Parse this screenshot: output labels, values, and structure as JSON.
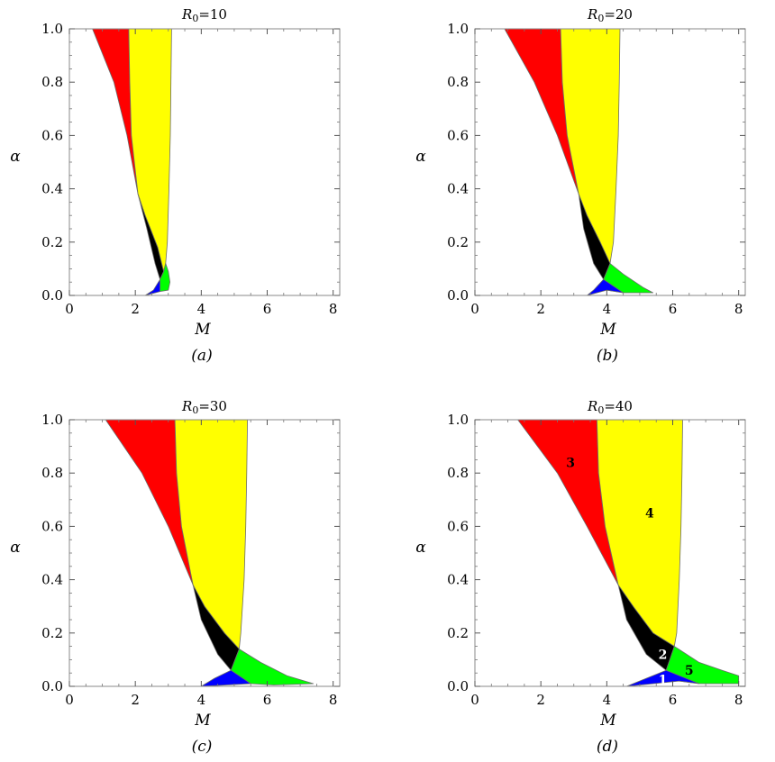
{
  "chart_data": [
    {
      "type": "area",
      "title": "R₀=10",
      "caption": "(a)",
      "xlabel": "M",
      "ylabel": "α",
      "xlim": [
        0,
        8.2
      ],
      "ylim": [
        0,
        1.0
      ],
      "x_ticks": [
        "0",
        "2",
        "4",
        "6",
        "8"
      ],
      "y_ticks": [
        "0.0",
        "0.2",
        "0.4",
        "0.6",
        "0.8",
        "1.0"
      ],
      "grid": false,
      "triple_point": [
        2.08,
        0.38
      ],
      "regions": [
        {
          "id": "3",
          "color": "#ff0000",
          "points": [
            [
              0.7,
              1.0
            ],
            [
              1.8,
              1.0
            ],
            [
              1.83,
              0.8
            ],
            [
              1.88,
              0.6
            ],
            [
              2.08,
              0.38
            ],
            [
              1.75,
              0.6
            ],
            [
              1.35,
              0.8
            ],
            [
              0.7,
              1.0
            ]
          ]
        },
        {
          "id": "4",
          "color": "#ffff00",
          "points": [
            [
              1.8,
              1.0
            ],
            [
              3.1,
              1.0
            ],
            [
              3.08,
              0.8
            ],
            [
              3.06,
              0.6
            ],
            [
              3.02,
              0.4
            ],
            [
              2.97,
              0.2
            ],
            [
              2.92,
              0.12
            ],
            [
              2.86,
              0.09
            ],
            [
              2.68,
              0.18
            ],
            [
              2.3,
              0.3
            ],
            [
              2.08,
              0.38
            ],
            [
              1.88,
              0.6
            ],
            [
              1.83,
              0.8
            ],
            [
              1.8,
              1.0
            ]
          ]
        },
        {
          "id": "2",
          "color": "#000000",
          "points": [
            [
              2.08,
              0.38
            ],
            [
              2.3,
              0.3
            ],
            [
              2.68,
              0.18
            ],
            [
              2.86,
              0.09
            ],
            [
              2.75,
              0.06
            ],
            [
              2.6,
              0.12
            ],
            [
              2.35,
              0.25
            ],
            [
              2.08,
              0.38
            ]
          ]
        },
        {
          "id": "5",
          "color": "#00ff00",
          "points": [
            [
              2.86,
              0.09
            ],
            [
              2.92,
              0.12
            ],
            [
              3.0,
              0.09
            ],
            [
              3.05,
              0.05
            ],
            [
              3.0,
              0.02
            ],
            [
              2.75,
              0.015
            ],
            [
              2.75,
              0.06
            ],
            [
              2.86,
              0.09
            ]
          ]
        },
        {
          "id": "1",
          "color": "#0000ff",
          "points": [
            [
              2.3,
              0.0
            ],
            [
              2.75,
              0.015
            ],
            [
              2.75,
              0.06
            ],
            [
              2.55,
              0.02
            ],
            [
              2.3,
              0.0
            ]
          ]
        }
      ],
      "labels": []
    },
    {
      "type": "area",
      "title": "R₀=20",
      "caption": "(b)",
      "xlabel": "M",
      "ylabel": "α",
      "xlim": [
        0,
        8.2
      ],
      "ylim": [
        0,
        1.0
      ],
      "x_ticks": [
        "0",
        "2",
        "4",
        "6",
        "8"
      ],
      "y_ticks": [
        "0.0",
        "0.2",
        "0.4",
        "0.6",
        "0.8",
        "1.0"
      ],
      "grid": false,
      "triple_point": [
        3.15,
        0.38
      ],
      "regions": [
        {
          "id": "3",
          "color": "#ff0000",
          "points": [
            [
              0.9,
              1.0
            ],
            [
              2.6,
              1.0
            ],
            [
              2.65,
              0.8
            ],
            [
              2.8,
              0.6
            ],
            [
              3.15,
              0.38
            ],
            [
              2.5,
              0.6
            ],
            [
              1.8,
              0.8
            ],
            [
              0.9,
              1.0
            ]
          ]
        },
        {
          "id": "4",
          "color": "#ffff00",
          "points": [
            [
              2.6,
              1.0
            ],
            [
              4.4,
              1.0
            ],
            [
              4.38,
              0.8
            ],
            [
              4.35,
              0.6
            ],
            [
              4.28,
              0.4
            ],
            [
              4.2,
              0.2
            ],
            [
              4.1,
              0.12
            ],
            [
              3.8,
              0.2
            ],
            [
              3.4,
              0.3
            ],
            [
              3.15,
              0.38
            ],
            [
              2.8,
              0.6
            ],
            [
              2.65,
              0.8
            ],
            [
              2.6,
              1.0
            ]
          ]
        },
        {
          "id": "2",
          "color": "#000000",
          "points": [
            [
              3.15,
              0.38
            ],
            [
              3.4,
              0.3
            ],
            [
              3.8,
              0.2
            ],
            [
              4.1,
              0.12
            ],
            [
              3.9,
              0.06
            ],
            [
              3.6,
              0.12
            ],
            [
              3.3,
              0.25
            ],
            [
              3.15,
              0.38
            ]
          ]
        },
        {
          "id": "5",
          "color": "#00ff00",
          "points": [
            [
              4.1,
              0.12
            ],
            [
              4.5,
              0.08
            ],
            [
              5.1,
              0.03
            ],
            [
              5.4,
              0.01
            ],
            [
              4.5,
              0.01
            ],
            [
              4.0,
              0.02
            ],
            [
              3.9,
              0.06
            ],
            [
              4.1,
              0.12
            ]
          ]
        },
        {
          "id": "1",
          "color": "#0000ff",
          "points": [
            [
              3.4,
              0.0
            ],
            [
              4.0,
              0.02
            ],
            [
              4.5,
              0.01
            ],
            [
              3.9,
              0.06
            ],
            [
              3.6,
              0.02
            ],
            [
              3.4,
              0.0
            ]
          ]
        }
      ],
      "labels": []
    },
    {
      "type": "area",
      "title": "R₀=30",
      "caption": "(c)",
      "xlabel": "M",
      "ylabel": "α",
      "xlim": [
        0,
        8.2
      ],
      "ylim": [
        0,
        1.0
      ],
      "x_ticks": [
        "0",
        "2",
        "4",
        "6",
        "8"
      ],
      "y_ticks": [
        "0.0",
        "0.2",
        "0.4",
        "0.6",
        "0.8",
        "1.0"
      ],
      "grid": false,
      "triple_point": [
        3.75,
        0.38
      ],
      "regions": [
        {
          "id": "3",
          "color": "#ff0000",
          "points": [
            [
              1.1,
              1.0
            ],
            [
              3.2,
              1.0
            ],
            [
              3.25,
              0.8
            ],
            [
              3.4,
              0.6
            ],
            [
              3.75,
              0.38
            ],
            [
              3.0,
              0.6
            ],
            [
              2.2,
              0.8
            ],
            [
              1.1,
              1.0
            ]
          ]
        },
        {
          "id": "4",
          "color": "#ffff00",
          "points": [
            [
              3.2,
              1.0
            ],
            [
              5.4,
              1.0
            ],
            [
              5.38,
              0.8
            ],
            [
              5.35,
              0.6
            ],
            [
              5.3,
              0.4
            ],
            [
              5.2,
              0.2
            ],
            [
              5.15,
              0.14
            ],
            [
              4.7,
              0.2
            ],
            [
              4.1,
              0.3
            ],
            [
              3.75,
              0.38
            ],
            [
              3.4,
              0.6
            ],
            [
              3.25,
              0.8
            ],
            [
              3.2,
              1.0
            ]
          ]
        },
        {
          "id": "2",
          "color": "#000000",
          "points": [
            [
              3.75,
              0.38
            ],
            [
              4.1,
              0.3
            ],
            [
              4.7,
              0.2
            ],
            [
              5.15,
              0.14
            ],
            [
              4.9,
              0.06
            ],
            [
              4.5,
              0.12
            ],
            [
              4.0,
              0.25
            ],
            [
              3.75,
              0.38
            ]
          ]
        },
        {
          "id": "5",
          "color": "#00ff00",
          "points": [
            [
              5.15,
              0.14
            ],
            [
              5.8,
              0.09
            ],
            [
              6.6,
              0.04
            ],
            [
              7.4,
              0.01
            ],
            [
              6.2,
              0.005
            ],
            [
              5.5,
              0.01
            ],
            [
              4.9,
              0.06
            ],
            [
              5.15,
              0.14
            ]
          ]
        },
        {
          "id": "1",
          "color": "#0000ff",
          "points": [
            [
              4.0,
              0.0
            ],
            [
              5.5,
              0.01
            ],
            [
              4.9,
              0.06
            ],
            [
              4.4,
              0.03
            ],
            [
              4.0,
              0.0
            ]
          ]
        }
      ],
      "labels": []
    },
    {
      "type": "area",
      "title": "R₀=40",
      "caption": "(d)",
      "xlabel": "M",
      "ylabel": "α",
      "xlim": [
        0,
        8.2
      ],
      "ylim": [
        0,
        1.0
      ],
      "x_ticks": [
        "0",
        "2",
        "4",
        "6",
        "8"
      ],
      "y_ticks": [
        "0.0",
        "0.2",
        "0.4",
        "0.6",
        "0.8",
        "1.0"
      ],
      "grid": false,
      "triple_point": [
        4.35,
        0.38
      ],
      "regions": [
        {
          "id": "3",
          "color": "#ff0000",
          "points": [
            [
              1.3,
              1.0
            ],
            [
              3.7,
              1.0
            ],
            [
              3.75,
              0.8
            ],
            [
              3.95,
              0.6
            ],
            [
              4.35,
              0.38
            ],
            [
              3.4,
              0.6
            ],
            [
              2.5,
              0.8
            ],
            [
              1.3,
              1.0
            ]
          ]
        },
        {
          "id": "4",
          "color": "#ffff00",
          "points": [
            [
              3.7,
              1.0
            ],
            [
              6.3,
              1.0
            ],
            [
              6.28,
              0.8
            ],
            [
              6.25,
              0.6
            ],
            [
              6.2,
              0.4
            ],
            [
              6.12,
              0.2
            ],
            [
              6.05,
              0.15
            ],
            [
              5.4,
              0.2
            ],
            [
              4.8,
              0.3
            ],
            [
              4.35,
              0.38
            ],
            [
              3.95,
              0.6
            ],
            [
              3.75,
              0.8
            ],
            [
              3.7,
              1.0
            ]
          ]
        },
        {
          "id": "2",
          "color": "#000000",
          "points": [
            [
              4.35,
              0.38
            ],
            [
              4.8,
              0.3
            ],
            [
              5.4,
              0.2
            ],
            [
              6.05,
              0.15
            ],
            [
              5.8,
              0.06
            ],
            [
              5.2,
              0.12
            ],
            [
              4.6,
              0.25
            ],
            [
              4.35,
              0.38
            ]
          ]
        },
        {
          "id": "5",
          "color": "#00ff00",
          "points": [
            [
              6.05,
              0.15
            ],
            [
              6.8,
              0.09
            ],
            [
              7.5,
              0.06
            ],
            [
              8.0,
              0.04
            ],
            [
              8.0,
              0.01
            ],
            [
              6.8,
              0.01
            ],
            [
              6.2,
              0.02
            ],
            [
              5.8,
              0.06
            ],
            [
              6.05,
              0.15
            ]
          ]
        },
        {
          "id": "1",
          "color": "#0000ff",
          "points": [
            [
              4.6,
              0.0
            ],
            [
              6.2,
              0.02
            ],
            [
              6.8,
              0.01
            ],
            [
              5.8,
              0.06
            ],
            [
              5.2,
              0.03
            ],
            [
              4.6,
              0.0
            ]
          ]
        }
      ],
      "labels": [
        {
          "text": "3",
          "x": 2.9,
          "y": 0.84,
          "color": "#000000"
        },
        {
          "text": "4",
          "x": 5.3,
          "y": 0.65,
          "color": "#000000"
        },
        {
          "text": "2",
          "x": 5.7,
          "y": 0.12,
          "color": "#ffffff"
        },
        {
          "text": "5",
          "x": 6.5,
          "y": 0.06,
          "color": "#000000"
        },
        {
          "text": "1",
          "x": 5.7,
          "y": 0.025,
          "color": "#ffffff"
        }
      ]
    }
  ]
}
